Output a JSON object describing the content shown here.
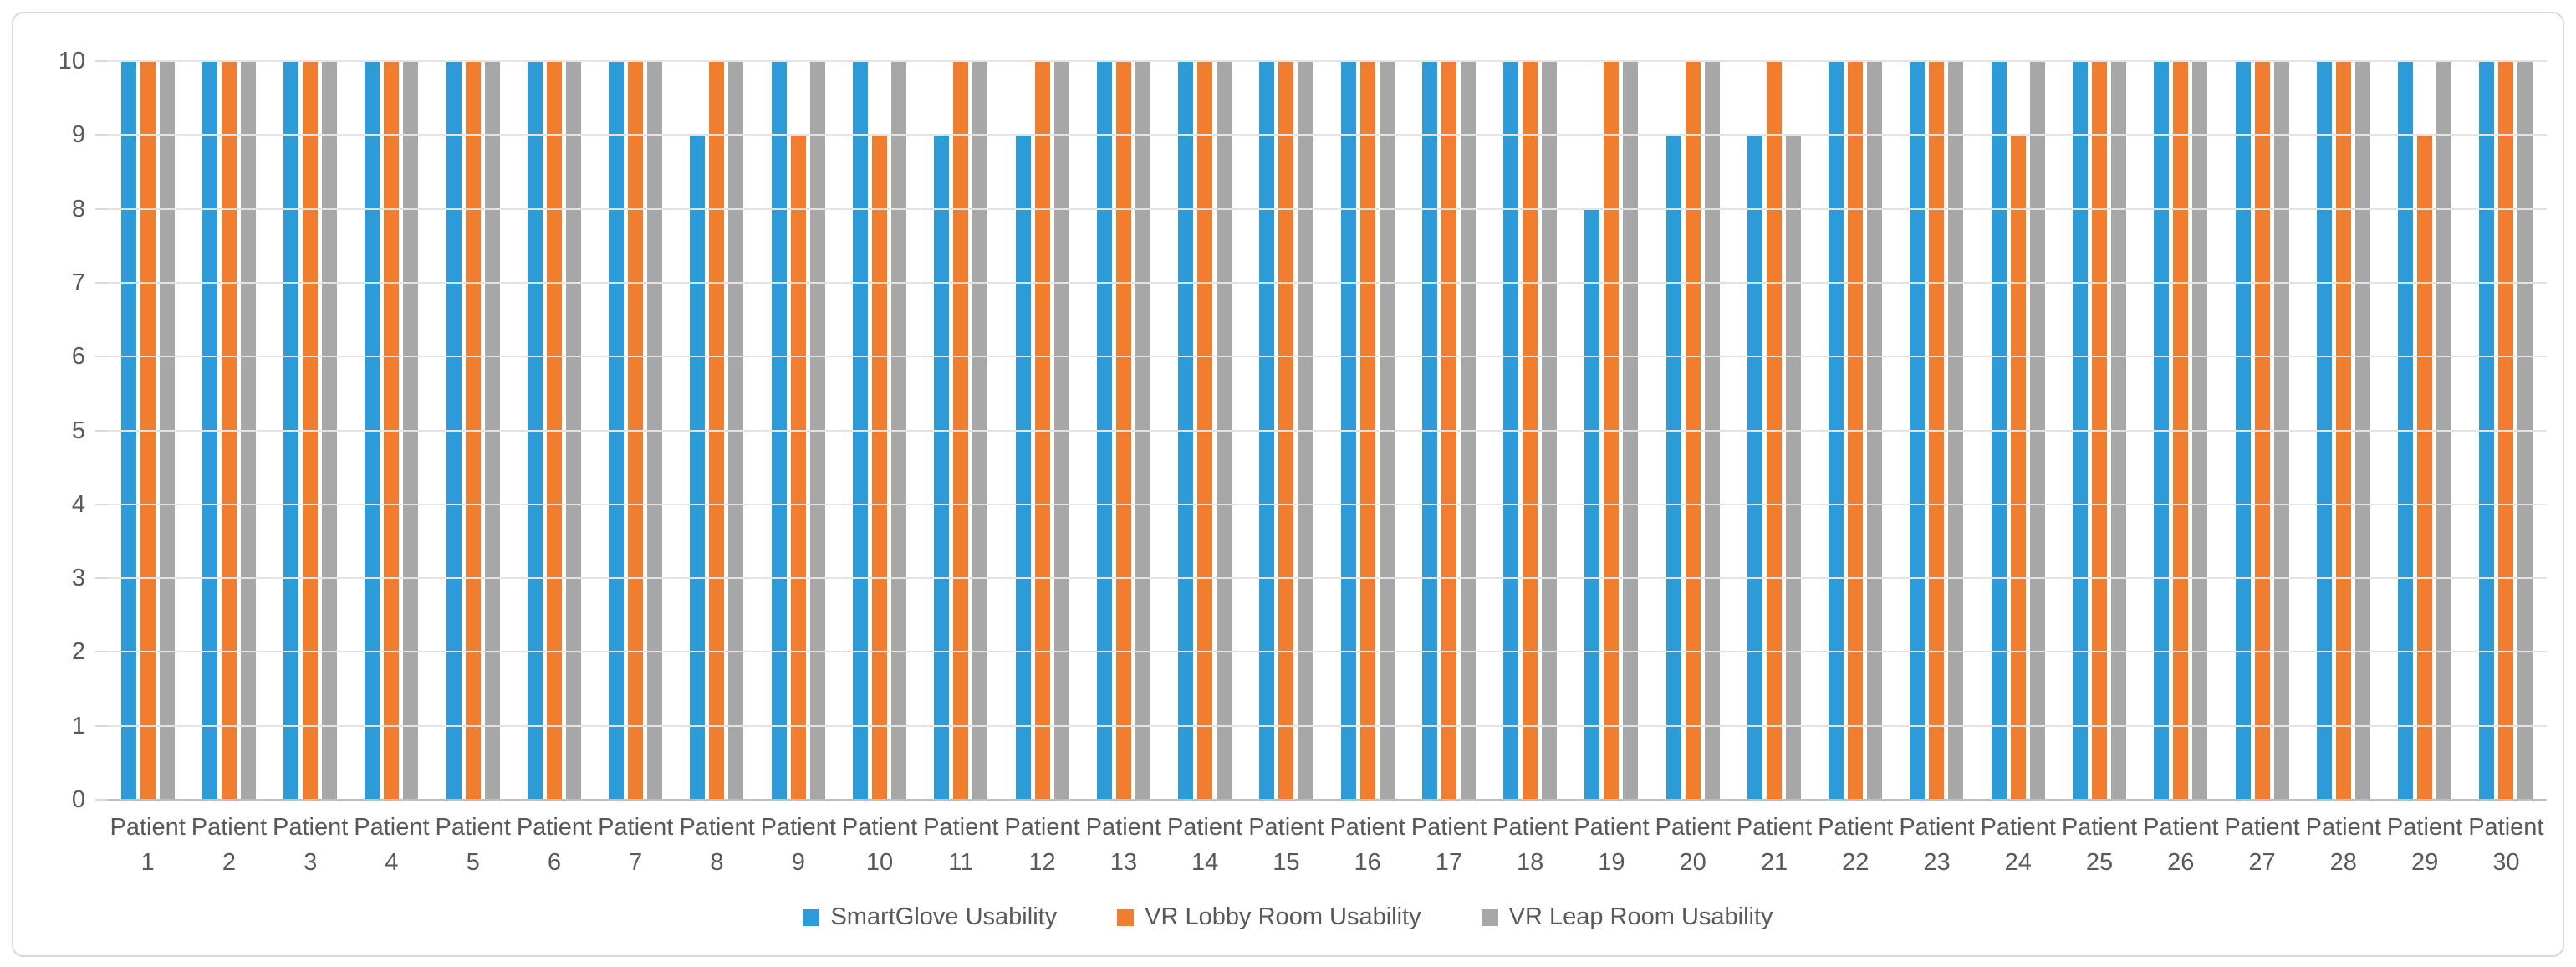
{
  "chart_data": {
    "type": "bar",
    "title": "",
    "xlabel": "",
    "ylabel": "",
    "categories": [
      "Patient 1",
      "Patient 2",
      "Patient 3",
      "Patient 4",
      "Patient 5",
      "Patient 6",
      "Patient 7",
      "Patient 8",
      "Patient 9",
      "Patient 10",
      "Patient 11",
      "Patient 12",
      "Patient 13",
      "Patient 14",
      "Patient 15",
      "Patient 16",
      "Patient 17",
      "Patient 18",
      "Patient 19",
      "Patient 20",
      "Patient 21",
      "Patient 22",
      "Patient 23",
      "Patient 24",
      "Patient 25",
      "Patient 26",
      "Patient 27",
      "Patient 28",
      "Patient 29",
      "Patient 30"
    ],
    "series": [
      {
        "name": "SmartGlove Usability",
        "color": "#2D9BD8",
        "values": [
          10,
          10,
          10,
          10,
          10,
          10,
          10,
          9,
          10,
          10,
          9,
          9,
          10,
          10,
          10,
          10,
          10,
          10,
          8,
          9,
          9,
          10,
          10,
          10,
          10,
          10,
          10,
          10,
          10,
          10
        ]
      },
      {
        "name": "VR Lobby Room Usability",
        "color": "#F07E2E",
        "values": [
          10,
          10,
          10,
          10,
          10,
          10,
          10,
          10,
          9,
          9,
          10,
          10,
          10,
          10,
          10,
          10,
          10,
          10,
          10,
          10,
          10,
          10,
          10,
          9,
          10,
          10,
          10,
          10,
          9,
          10
        ]
      },
      {
        "name": "VR Leap Room Usability",
        "color": "#A7A7A7",
        "values": [
          10,
          10,
          10,
          10,
          10,
          10,
          10,
          10,
          10,
          10,
          10,
          10,
          10,
          10,
          10,
          10,
          10,
          10,
          10,
          10,
          9,
          10,
          10,
          10,
          10,
          10,
          10,
          10,
          10,
          10
        ]
      }
    ],
    "y_axis": {
      "min": 0,
      "max": 10,
      "tick_interval": 1,
      "ticks": [
        "0",
        "1",
        "2",
        "3",
        "4",
        "5",
        "6",
        "7",
        "8",
        "9",
        "10"
      ]
    },
    "x_axis": {
      "label_line_split": " "
    },
    "legend_position": "bottom",
    "gridlines": "horizontal",
    "colors": {
      "gridline": "#E3E3E3",
      "axis_line": "#BFBFBF",
      "tick": "#D9D9D9",
      "text": "#595959",
      "figure_border": "#D9D9D9",
      "background": "#FFFFFF"
    }
  }
}
